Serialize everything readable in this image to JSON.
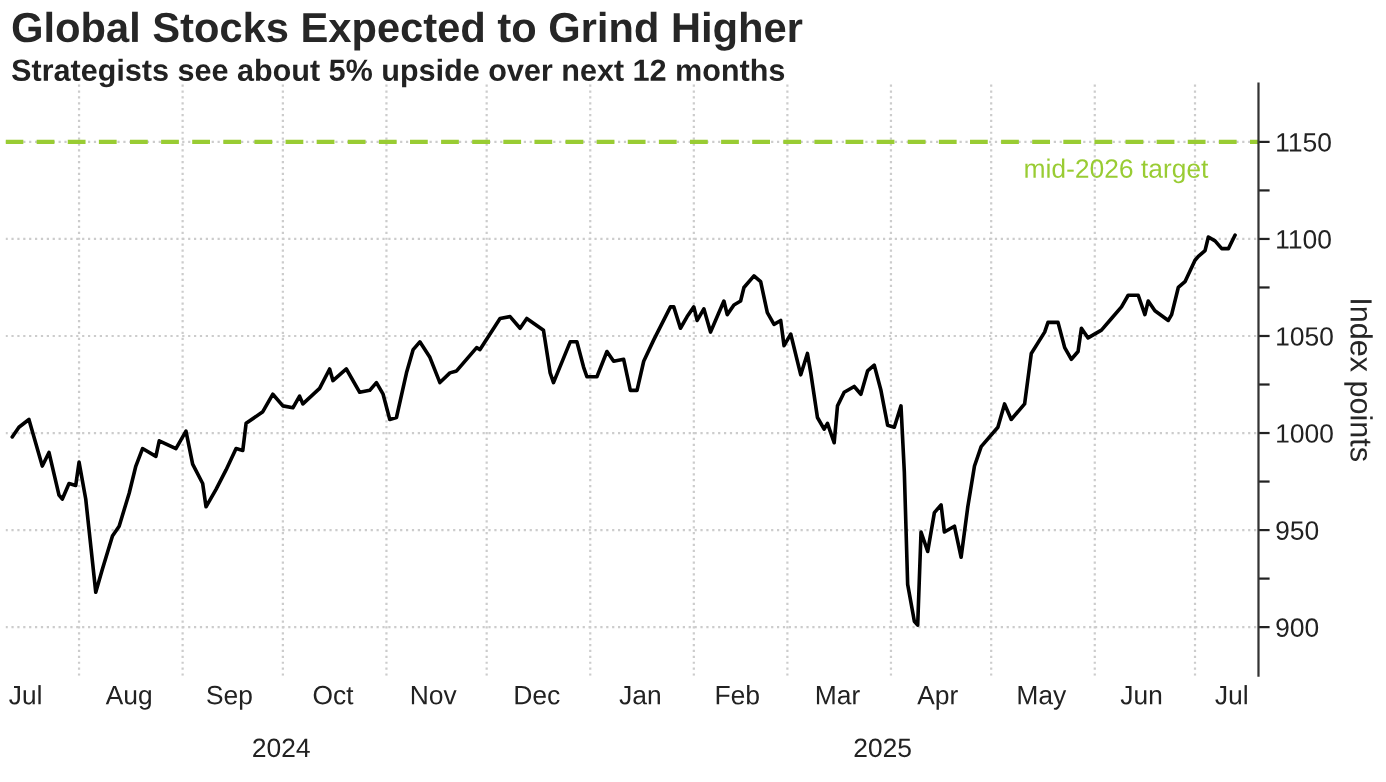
{
  "chart_data": {
    "type": "line",
    "title": "Global Stocks Expected to Grind Higher",
    "subtitle": "Strategists see about 5% upside over next 12 months",
    "ylabel": "Index points",
    "annotations": [
      "2024",
      "2025"
    ],
    "x": [
      "2024-07-12",
      "2024-07-14",
      "2024-07-17",
      "2024-07-21",
      "2024-07-23",
      "2024-07-26",
      "2024-07-27",
      "2024-07-29",
      "2024-07-31",
      "2024-08-01",
      "2024-08-03",
      "2024-08-06",
      "2024-08-08",
      "2024-08-11",
      "2024-08-13",
      "2024-08-16",
      "2024-08-18",
      "2024-08-20",
      "2024-08-24",
      "2024-08-25",
      "2024-08-30",
      "2024-09-02",
      "2024-09-04",
      "2024-09-07",
      "2024-09-08",
      "2024-09-11",
      "2024-09-14",
      "2024-09-17",
      "2024-09-19",
      "2024-09-20",
      "2024-09-25",
      "2024-09-28",
      "2024-10-01",
      "2024-10-04",
      "2024-10-06",
      "2024-10-07",
      "2024-10-12",
      "2024-10-15",
      "2024-10-16",
      "2024-10-20",
      "2024-10-24",
      "2024-10-27",
      "2024-10-29",
      "2024-10-31",
      "2024-11-02",
      "2024-11-04",
      "2024-11-07",
      "2024-11-09",
      "2024-11-11",
      "2024-11-14",
      "2024-11-17",
      "2024-11-20",
      "2024-11-22",
      "2024-11-28",
      "2024-11-29",
      "2024-12-05",
      "2024-12-08",
      "2024-12-11",
      "2024-12-13",
      "2024-12-18",
      "2024-12-20",
      "2024-12-21",
      "2024-12-26",
      "2024-12-28",
      "2024-12-30",
      "2024-12-31",
      "2025-01-03",
      "2025-01-06",
      "2025-01-08",
      "2025-01-11",
      "2025-01-13",
      "2025-01-15",
      "2025-01-17",
      "2025-01-20",
      "2025-01-25",
      "2025-01-26",
      "2025-01-28",
      "2025-01-30",
      "2025-02-01",
      "2025-02-02",
      "2025-02-04",
      "2025-02-06",
      "2025-02-08",
      "2025-02-10",
      "2025-02-11",
      "2025-02-13",
      "2025-02-15",
      "2025-02-16",
      "2025-02-19",
      "2025-02-21",
      "2025-02-23",
      "2025-02-25",
      "2025-02-27",
      "2025-02-28",
      "2025-03-02",
      "2025-03-05",
      "2025-03-07",
      "2025-03-08",
      "2025-03-10",
      "2025-03-12",
      "2025-03-13",
      "2025-03-15",
      "2025-03-16",
      "2025-03-18",
      "2025-03-21",
      "2025-03-23",
      "2025-03-25",
      "2025-03-27",
      "2025-03-29",
      "2025-03-31",
      "2025-04-02",
      "2025-04-04",
      "2025-04-05",
      "2025-04-06",
      "2025-04-08",
      "2025-04-09",
      "2025-04-10",
      "2025-04-12",
      "2025-04-14",
      "2025-04-16",
      "2025-04-17",
      "2025-04-20",
      "2025-04-22",
      "2025-04-24",
      "2025-04-26",
      "2025-04-28",
      "2025-05-03",
      "2025-05-05",
      "2025-05-07",
      "2025-05-11",
      "2025-05-13",
      "2025-05-17",
      "2025-05-18",
      "2025-05-21",
      "2025-05-23",
      "2025-05-25",
      "2025-05-27",
      "2025-05-28",
      "2025-05-30",
      "2025-06-03",
      "2025-06-06",
      "2025-06-09",
      "2025-06-11",
      "2025-06-14",
      "2025-06-16",
      "2025-06-17",
      "2025-06-19",
      "2025-06-23",
      "2025-06-24",
      "2025-06-26",
      "2025-06-28",
      "2025-07-01",
      "2025-07-02",
      "2025-07-04",
      "2025-07-05",
      "2025-07-07",
      "2025-07-09",
      "2025-07-11",
      "2025-07-13"
    ],
    "series": [
      {
        "color": "#000000",
        "values": [
          998,
          1003,
          1007,
          983,
          990,
          968,
          966,
          974,
          973,
          985,
          966,
          918,
          930,
          947,
          952,
          969,
          983,
          992,
          988,
          996,
          992,
          1001,
          984,
          974,
          962,
          971,
          981,
          992,
          991,
          1005,
          1011,
          1020,
          1014,
          1013,
          1019,
          1015,
          1023,
          1033,
          1027,
          1033,
          1021,
          1022,
          1026,
          1020,
          1007,
          1008,
          1031,
          1043,
          1047,
          1039,
          1026,
          1031,
          1032,
          1044,
          1043,
          1059,
          1060,
          1054,
          1059,
          1053,
          1031,
          1026,
          1047,
          1047,
          1034,
          1029,
          1029,
          1042,
          1037,
          1038,
          1022,
          1022,
          1037,
          1048,
          1065,
          1065,
          1054,
          1060,
          1065,
          1058,
          1064,
          1052,
          1060,
          1068,
          1061,
          1066,
          1068,
          1075,
          1081,
          1078,
          1062,
          1056,
          1058,
          1045,
          1051,
          1030,
          1041,
          1031,
          1008,
          1002,
          1005,
          995,
          1014,
          1021,
          1024,
          1020,
          1032,
          1035,
          1022,
          1004,
          1003,
          1014,
          980,
          922,
          903,
          901,
          949,
          939,
          959,
          963,
          949,
          952,
          936,
          962,
          983,
          993,
          1003,
          1015,
          1007,
          1015,
          1041,
          1052,
          1057,
          1057,
          1044,
          1038,
          1042,
          1054,
          1049,
          1053,
          1059,
          1065,
          1071,
          1071,
          1061,
          1068,
          1063,
          1058,
          1061,
          1075,
          1078,
          1089,
          1091,
          1094,
          1101,
          1099,
          1095,
          1095,
          1102
        ]
      }
    ],
    "xlim": [
      "2024-07-10",
      "2025-07-20"
    ],
    "xticks": [
      {
        "value": "2024-08-01",
        "label": null
      },
      {
        "value": "2024-09-01",
        "label": null
      },
      {
        "value": "2024-10-01",
        "label": null
      },
      {
        "value": "2024-11-01",
        "label": null
      },
      {
        "value": "2024-12-01",
        "label": null
      },
      {
        "value": "2025-01-01",
        "label": null
      },
      {
        "value": "2025-02-01",
        "label": null
      },
      {
        "value": "2025-03-01",
        "label": null
      },
      {
        "value": "2025-04-01",
        "label": null
      },
      {
        "value": "2025-05-01",
        "label": null
      },
      {
        "value": "2025-06-01",
        "label": null
      },
      {
        "value": "2025-07-01",
        "label": null
      },
      {
        "value": "2024-07-16",
        "label": "Jul"
      },
      {
        "value": "2024-08-16",
        "label": "Aug"
      },
      {
        "value": "2024-09-15",
        "label": "Sep"
      },
      {
        "value": "2024-10-16",
        "label": "Oct"
      },
      {
        "value": "2024-11-15",
        "label": "Nov"
      },
      {
        "value": "2024-12-16",
        "label": "Dec"
      },
      {
        "value": "2025-01-16",
        "label": "Jan"
      },
      {
        "value": "2025-02-14",
        "label": "Feb"
      },
      {
        "value": "2025-03-16",
        "label": "Mar"
      },
      {
        "value": "2025-04-15",
        "label": "Apr"
      },
      {
        "value": "2025-05-16",
        "label": "May"
      },
      {
        "value": "2025-06-15",
        "label": "Jun"
      },
      {
        "value": "2025-07-12",
        "label": "Jul"
      }
    ],
    "ylim": [
      875,
      1180
    ],
    "yticks": [
      900,
      {
        "value": 925,
        "label": null
      },
      950,
      {
        "value": 975,
        "label": null
      },
      1000,
      {
        "value": 1025,
        "label": null
      },
      1050,
      {
        "value": 1075,
        "label": null
      },
      1100,
      {
        "value": 1125,
        "label": null
      },
      1150
    ],
    "grid": true,
    "ref_lines": [
      {
        "axis": "y",
        "value": 1150,
        "label": "mid-2026 target",
        "color": "#99cc33",
        "line_style": "dashed"
      }
    ]
  }
}
